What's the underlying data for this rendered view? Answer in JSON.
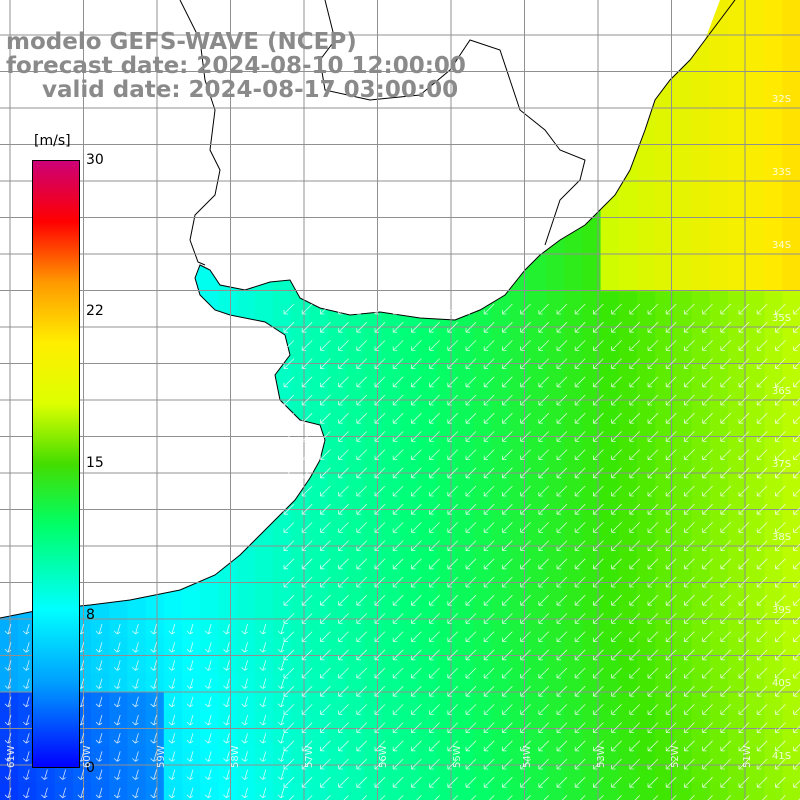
{
  "titles": {
    "line1": "modelo GEFS-WAVE (NCEP)",
    "line2": "forecast date: 2024-08-10 12:00:00",
    "line3": "valid date: 2024-08-17 03:00:00"
  },
  "colorbar": {
    "unit": "[m/s]",
    "ticks": [
      "30",
      "22",
      "15",
      "8",
      "0"
    ],
    "colors": [
      "#0000ff",
      "#00a0ff",
      "#00ffff",
      "#00ff66",
      "#44dd00",
      "#ddff00",
      "#ffee00",
      "#ff9900",
      "#ff0000",
      "#cc0077"
    ]
  },
  "lat_labels": [
    "32S",
    "33S",
    "34S",
    "35S",
    "36S",
    "37S",
    "38S",
    "39S",
    "40S",
    "41S"
  ],
  "lon_labels": [
    "61W",
    "60W",
    "59W",
    "58W",
    "57W",
    "56W",
    "55W",
    "54W",
    "53W",
    "52W",
    "51W"
  ],
  "colors": {
    "land": "#ffffff",
    "coast": "#000000",
    "grid": "#909090",
    "arrow": "#ffffff"
  }
}
